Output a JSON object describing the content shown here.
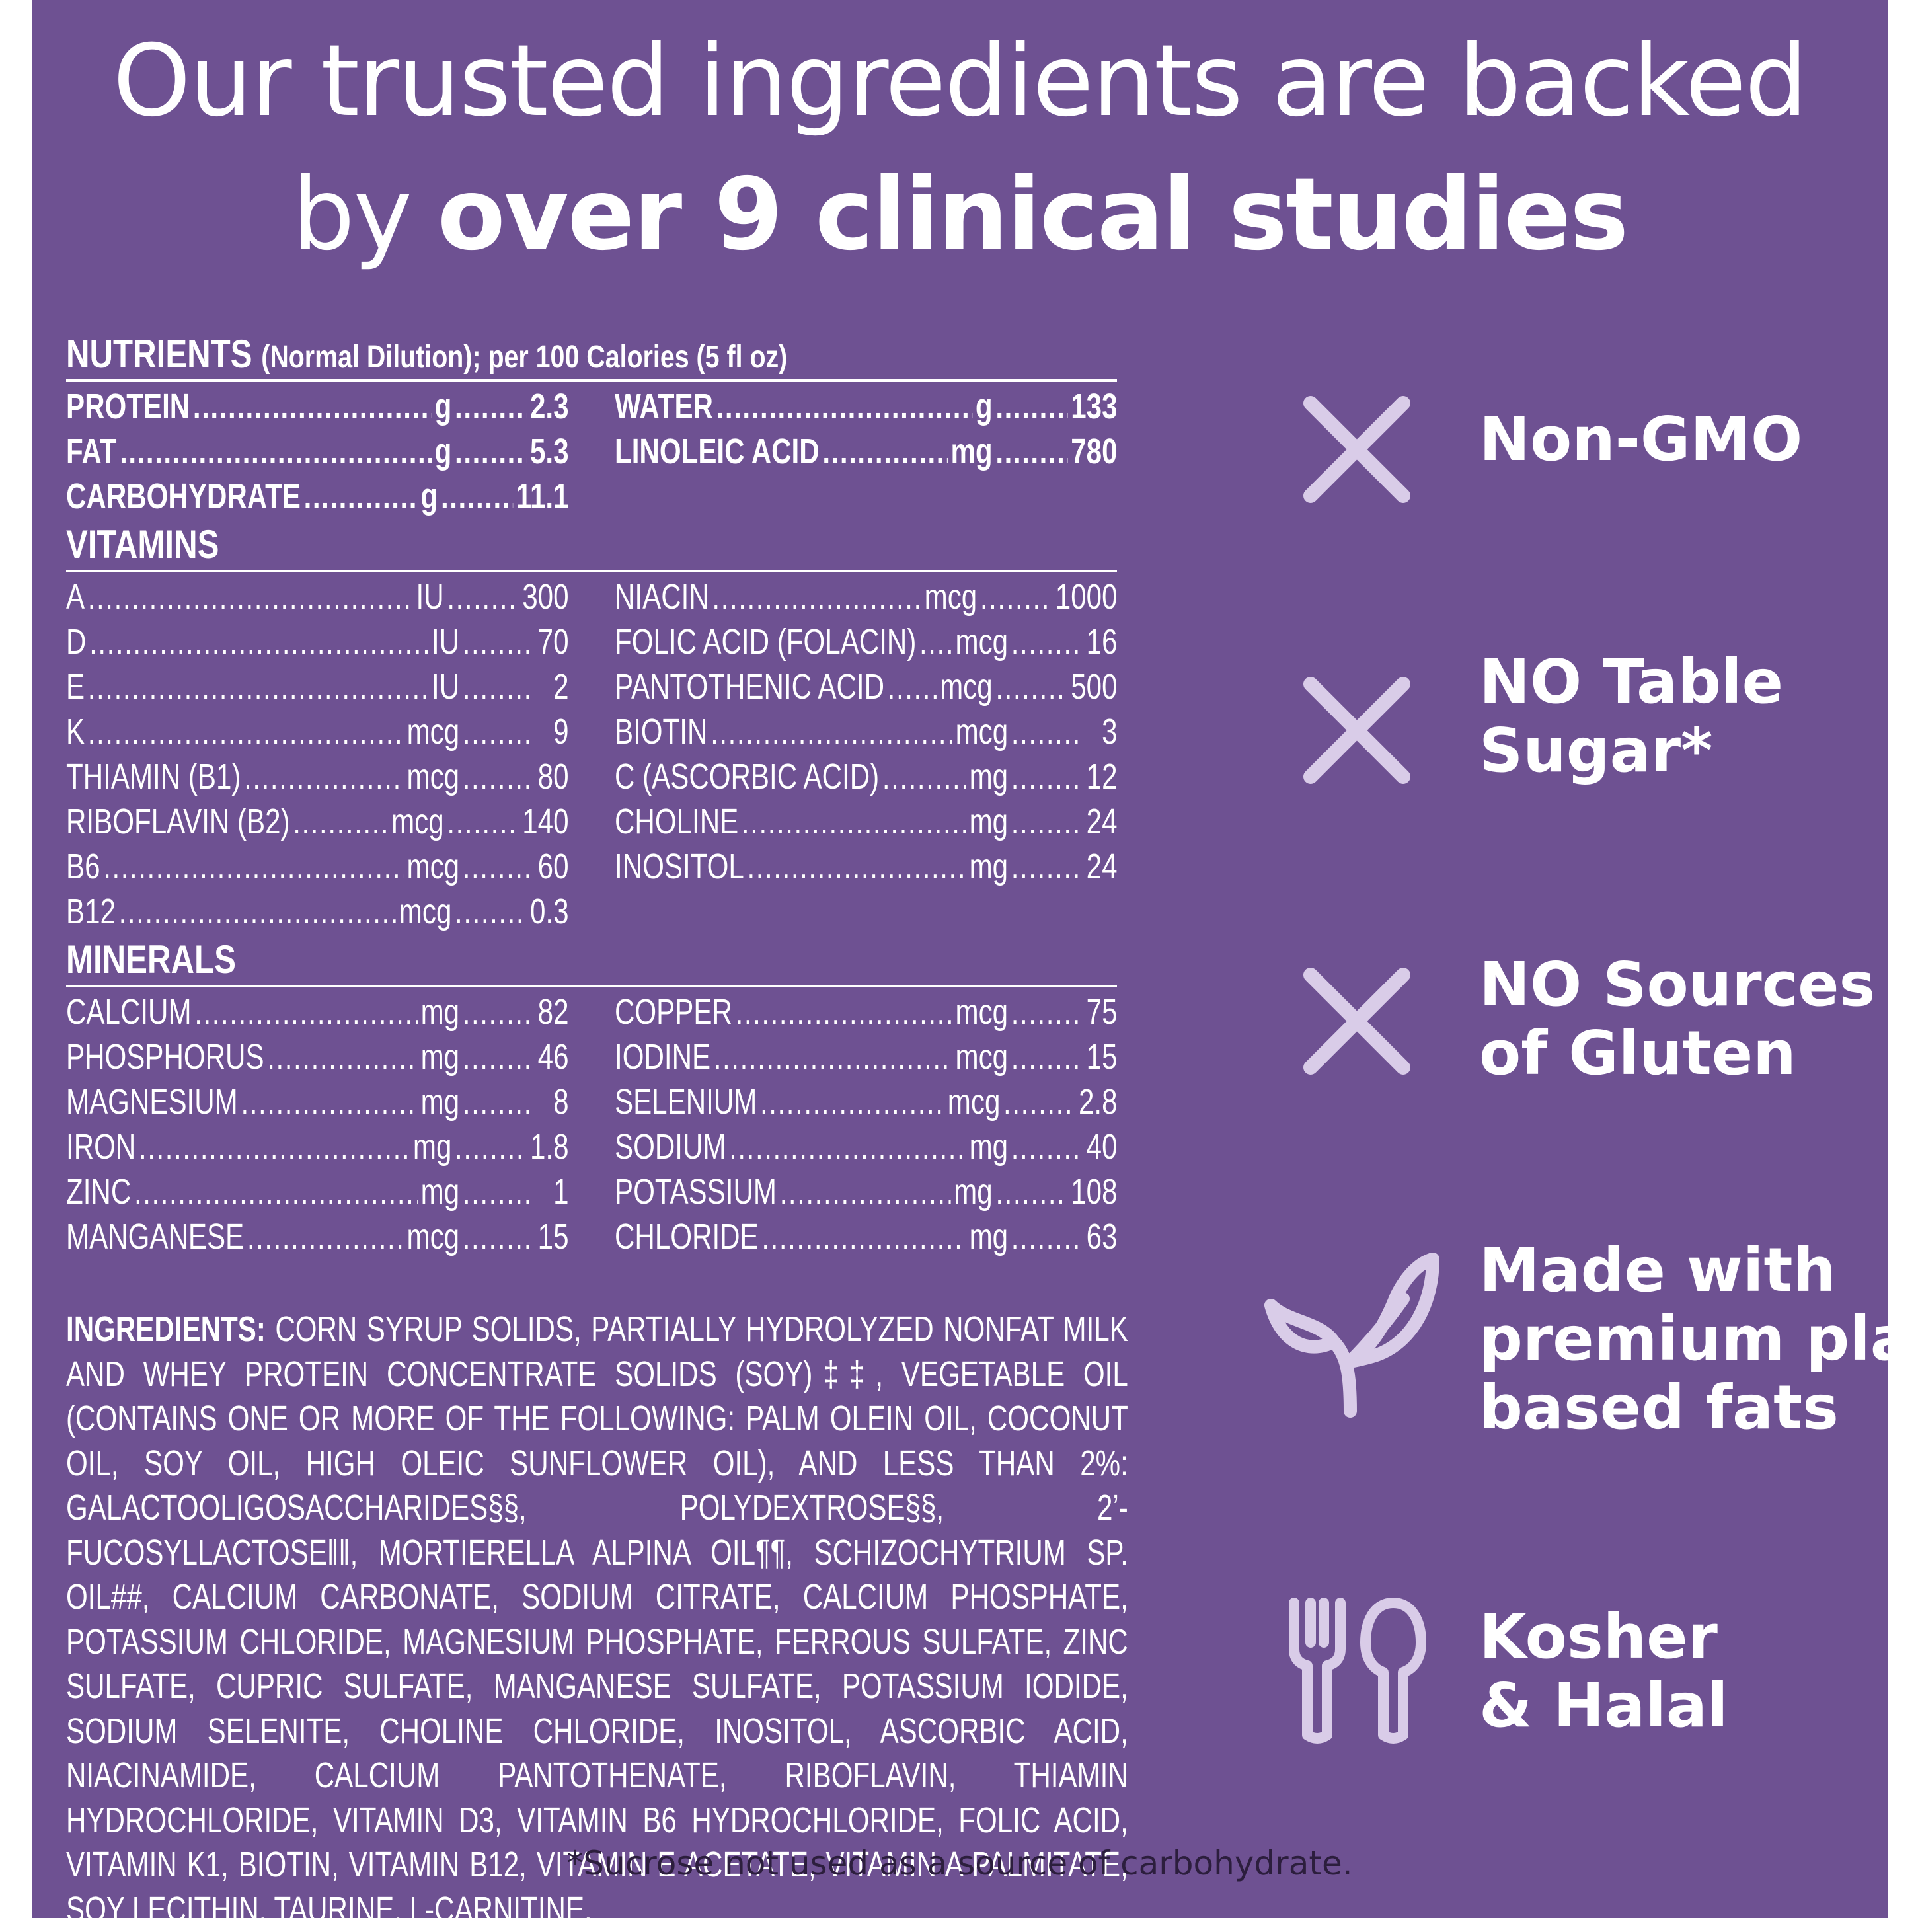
{
  "headline": {
    "line1": "Our trusted ingredients are backed",
    "line2_prefix": "by",
    "line2_bold": "over 9 clinical studies"
  },
  "nutrients": {
    "title": "NUTRIENTS",
    "subtitle": "(Normal Dilution); per 100 Calories (5 fl oz)",
    "left": [
      {
        "name": "PROTEIN",
        "unit": "g",
        "value": "2.3"
      },
      {
        "name": "FAT",
        "unit": "g",
        "value": "5.3"
      },
      {
        "name": "CARBOHYDRATE",
        "unit": "g",
        "value": "11.1"
      }
    ],
    "right": [
      {
        "name": "WATER",
        "unit": "g",
        "value": "133"
      },
      {
        "name": "LINOLEIC ACID",
        "unit": "mg",
        "value": "780"
      }
    ]
  },
  "vitamins": {
    "title": "VITAMINS",
    "left": [
      {
        "name": "A",
        "unit": "IU",
        "value": "300"
      },
      {
        "name": "D",
        "unit": "IU",
        "value": "70"
      },
      {
        "name": "E",
        "unit": "IU",
        "value": "2"
      },
      {
        "name": "K",
        "unit": "mcg",
        "value": "9"
      },
      {
        "name": "THIAMIN (B1)",
        "unit": "mcg",
        "value": "80"
      },
      {
        "name": "RIBOFLAVIN (B2)",
        "unit": "mcg",
        "value": "140"
      },
      {
        "name": "B6",
        "unit": "mcg",
        "value": "60"
      },
      {
        "name": "B12",
        "unit": "mcg",
        "value": "0.3"
      }
    ],
    "right": [
      {
        "name": "NIACIN",
        "unit": "mcg",
        "value": "1000"
      },
      {
        "name": "FOLIC ACID (FOLACIN)",
        "unit": "mcg",
        "value": "16"
      },
      {
        "name": "PANTOTHENIC ACID",
        "unit": "mcg",
        "value": "500"
      },
      {
        "name": "BIOTIN",
        "unit": "mcg",
        "value": "3"
      },
      {
        "name": "C (ASCORBIC ACID)",
        "unit": "mg",
        "value": "12"
      },
      {
        "name": "CHOLINE",
        "unit": "mg",
        "value": "24"
      },
      {
        "name": "INOSITOL",
        "unit": "mg",
        "value": "24"
      }
    ]
  },
  "minerals": {
    "title": "MINERALS",
    "left": [
      {
        "name": "CALCIUM",
        "unit": "mg",
        "value": "82"
      },
      {
        "name": "PHOSPHORUS",
        "unit": "mg",
        "value": "46"
      },
      {
        "name": "MAGNESIUM",
        "unit": "mg",
        "value": "8"
      },
      {
        "name": "IRON",
        "unit": "mg",
        "value": "1.8"
      },
      {
        "name": "ZINC",
        "unit": "mg",
        "value": "1"
      },
      {
        "name": "MANGANESE",
        "unit": "mcg",
        "value": "15"
      }
    ],
    "right": [
      {
        "name": "COPPER",
        "unit": "mcg",
        "value": "75"
      },
      {
        "name": "IODINE",
        "unit": "mcg",
        "value": "15"
      },
      {
        "name": "SELENIUM",
        "unit": "mcg",
        "value": "2.8"
      },
      {
        "name": "SODIUM",
        "unit": "mg",
        "value": "40"
      },
      {
        "name": "POTASSIUM",
        "unit": "mg",
        "value": "108"
      },
      {
        "name": "CHLORIDE",
        "unit": "mg",
        "value": "63"
      }
    ]
  },
  "ingredients": {
    "label": "INGREDIENTS:",
    "text": "CORN SYRUP SOLIDS, PARTIALLY HYDROLYZED NONFAT MILK AND WHEY PROTEIN CONCENTRATE SOLIDS (SOY)‡‡, VEGETABLE OIL (CONTAINS ONE OR MORE OF THE FOLLOWING: PALM OLEIN OIL, COCONUT OIL, SOY OIL, HIGH OLEIC SUNFLOWER OIL), AND LESS THAN 2%: GALACTOOLIGOSACCHARIDES§§, POLYDEXTROSE§§, 2’-FUCOSYLLACTOSE‖‖, MORTIERELLA ALPINA OIL¶¶, SCHIZOCHYTRIUM SP. OIL##, CALCIUM CARBONATE, SODIUM CITRATE, CALCIUM PHOSPHATE, POTASSIUM CHLORIDE, MAGNESIUM PHOSPHATE, FERROUS SULFATE, ZINC SULFATE, CUPRIC SULFATE, MANGANESE SULFATE, POTASSIUM IODIDE, SODIUM SELENITE, CHOLINE CHLORIDE, INOSITOL, ASCORBIC ACID, NIACINAMIDE, CALCIUM PANTOTHENATE, RIBOFLAVIN, THIAMIN HYDROCHLORIDE, VITAMIN D3, VITAMIN B6 HYDROCHLORIDE, FOLIC ACID, VITAMIN K1, BIOTIN, VITAMIN B12, VITAMIN E ACETATE, VITAMIN A PALMITATE, SOY LECITHIN, TAURINE, L-CARNITINE."
  },
  "claims": [
    {
      "icon": "x-icon",
      "lines": [
        "Non-GMO"
      ]
    },
    {
      "icon": "x-icon",
      "lines": [
        "NO Table",
        "Sugar*"
      ]
    },
    {
      "icon": "x-icon",
      "lines": [
        "NO Sources",
        "of Gluten"
      ]
    },
    {
      "icon": "leaf-icon",
      "lines": [
        "Made with",
        "premium plant",
        "based fats"
      ]
    },
    {
      "icon": "fork-spoon-icon",
      "lines": [
        "Kosher",
        "& Halal"
      ]
    }
  ],
  "footnote": "*Sucrose not used as a source of carbohydrate.",
  "colors": {
    "background": "#6e5192",
    "icon": "#d9cce8",
    "text": "#ffffff",
    "footnote": "#2c1e3d"
  }
}
